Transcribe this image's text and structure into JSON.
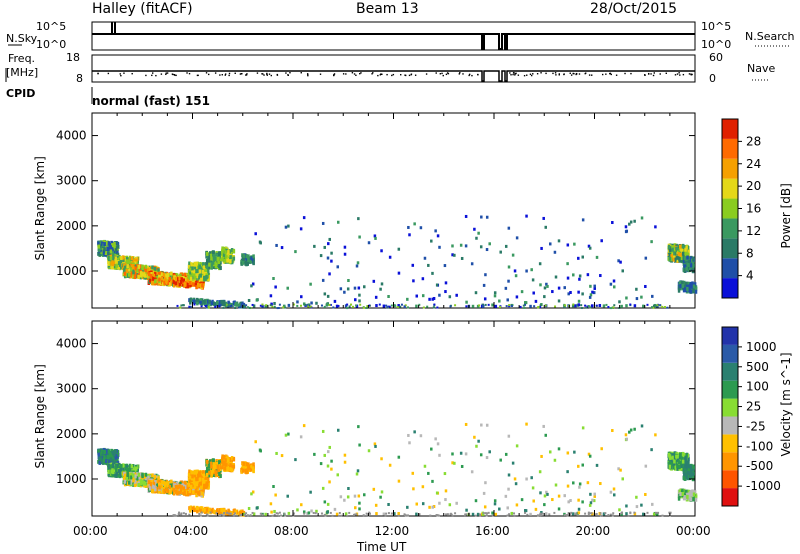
{
  "header": {
    "site": "Halley (fitACF)",
    "beam": "Beam 13",
    "date": "28/Oct/2015"
  },
  "labels": {
    "nsky": "N.Sky",
    "freq_top": "Freq.",
    "freq_unit": "[MHz]",
    "cpid": "CPID",
    "nsearch": "N.Search",
    "nave": "Nave",
    "mode": "normal (fast) 151",
    "ylabel": "Slant Range [km]",
    "xlabel": "Time UT"
  },
  "noise_axis": {
    "top": "10^5",
    "bottom": "10^0"
  },
  "freq_axis": {
    "left_top": "18",
    "left_bottom": "8",
    "right_top": "60",
    "right_bottom": "0"
  },
  "colors": {
    "power_scale": [
      "#0a10d8",
      "#1f4fa8",
      "#2a7a66",
      "#3a9960",
      "#8acc20",
      "#e4d818",
      "#f5a000",
      "#ff6a00",
      "#e02000"
    ],
    "velocity_scale": [
      "#e01010",
      "#ff5500",
      "#ff9500",
      "#ffc000",
      "#b8b8b8",
      "#88dd33",
      "#2c9a50",
      "#2a8070",
      "#2a5aa8",
      "#2233aa"
    ],
    "ground": "#909090"
  },
  "chart_data": [
    {
      "type": "heatmap",
      "name": "power",
      "xlabel": "Time UT",
      "ylabel": "Slant Range [km]",
      "colorbar_label": "Power [dB]",
      "colorbar_ticks": [
        "4",
        "8",
        "12",
        "16",
        "20",
        "24",
        "28"
      ],
      "x_ticks": [
        "00:00",
        "04:00",
        "08:00",
        "12:00",
        "16:00",
        "20:00",
        "00:00"
      ],
      "y_ticks": [
        "1000",
        "2000",
        "3000",
        "4000"
      ],
      "xlim_hours": [
        0,
        24
      ],
      "ylim": [
        180,
        4500
      ]
    },
    {
      "type": "heatmap",
      "name": "velocity",
      "xlabel": "Time UT",
      "ylabel": "Slant Range [km]",
      "colorbar_label": "Velocity [m s^-1]",
      "colorbar_ticks": [
        "1000",
        "500",
        "100",
        "25",
        "-25",
        "-100",
        "-500",
        "-1000"
      ],
      "x_ticks": [
        "00:00",
        "04:00",
        "08:00",
        "12:00",
        "16:00",
        "20:00",
        "00:00"
      ],
      "y_ticks": [
        "1000",
        "2000",
        "3000",
        "4000"
      ],
      "xlim_hours": [
        0,
        24
      ],
      "ylim": [
        180,
        4500
      ]
    }
  ]
}
